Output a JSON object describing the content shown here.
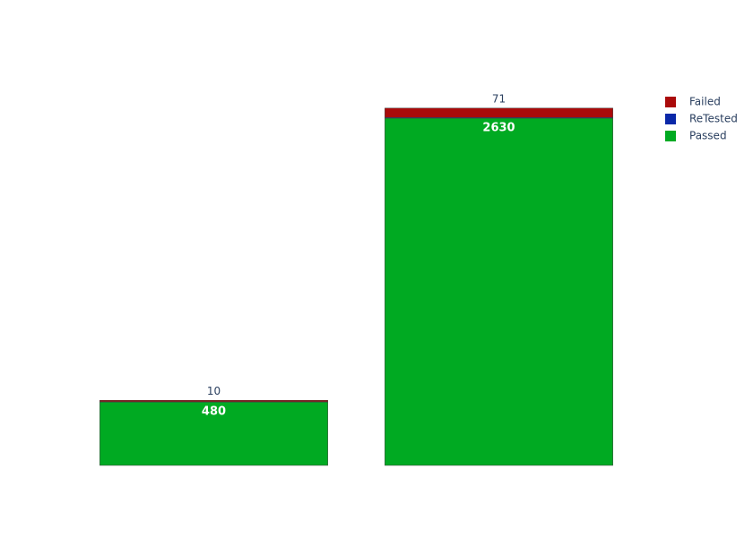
{
  "chart_data": {
    "type": "stacked-bar",
    "categories": [
      null,
      null
    ],
    "series": [
      {
        "name": "Passed",
        "color": "#00aa22",
        "values": [
          480,
          2630
        ],
        "label_position": "inside"
      },
      {
        "name": "ReTested",
        "color": "#0a28a8",
        "values": [
          3,
          5
        ]
      },
      {
        "name": "Failed",
        "color": "#aa0a0a",
        "values": [
          10,
          71
        ],
        "label_position": "outside"
      }
    ],
    "ylim": [
      0,
      2847
    ],
    "legend": "top-right"
  }
}
